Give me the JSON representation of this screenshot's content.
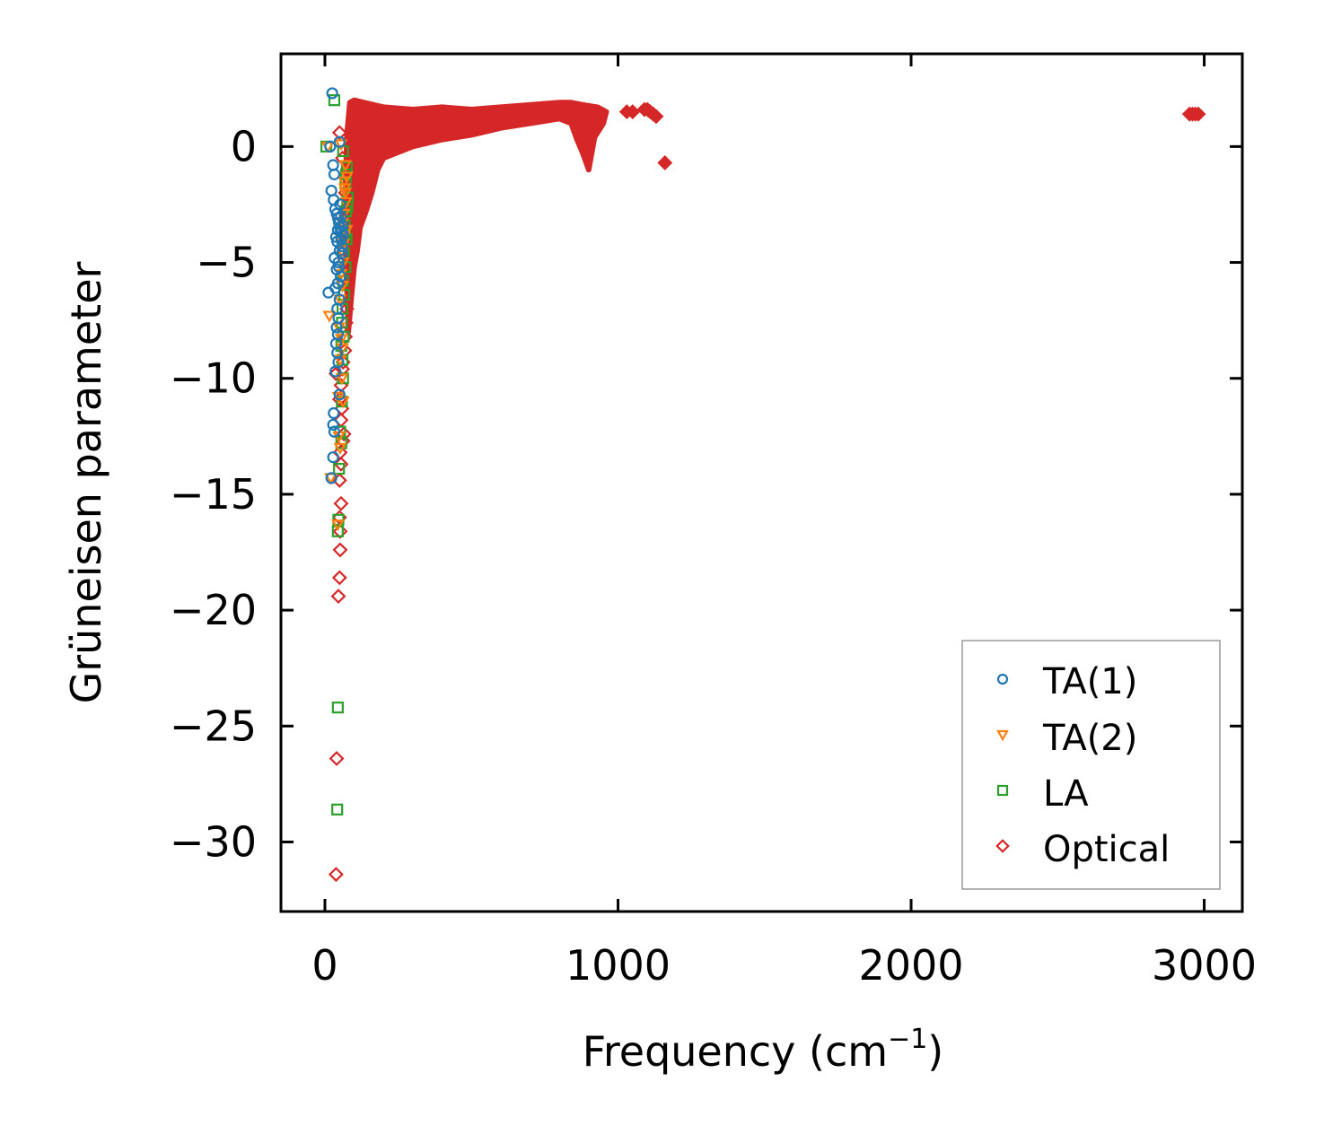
{
  "chart_data": {
    "type": "scatter",
    "title": "",
    "xlabel": "Frequency (cm",
    "xlabel_sup": "−1",
    "xlabel_end": ")",
    "ylabel": "Grüneisen parameter",
    "xlim": [
      -150,
      3130
    ],
    "ylim": [
      -33,
      4
    ],
    "xticks": [
      0,
      1000,
      2000,
      3000
    ],
    "xtick_labels": [
      "0",
      "1000",
      "2000",
      "3000"
    ],
    "yticks": [
      0,
      -5,
      -10,
      -15,
      -20,
      -25,
      -30
    ],
    "ytick_labels": [
      "0",
      "−5",
      "−10",
      "−15",
      "−20",
      "−25",
      "−30"
    ],
    "grid": false,
    "legend_position": "lower-right",
    "series": [
      {
        "name": "TA(1)",
        "label": "TA(1)",
        "marker": "circle",
        "color": "#1f77b4",
        "points": [
          [
            25,
            2.3
          ],
          [
            18,
            0
          ],
          [
            50,
            0.2
          ],
          [
            28,
            -0.8
          ],
          [
            32,
            -1.2
          ],
          [
            22,
            -1.9
          ],
          [
            30,
            -2.3
          ],
          [
            35,
            -2.7
          ],
          [
            40,
            -2.9
          ],
          [
            45,
            -3.1
          ],
          [
            48,
            -3.3
          ],
          [
            52,
            -3.5
          ],
          [
            55,
            -3.7
          ],
          [
            38,
            -3.9
          ],
          [
            42,
            -4.1
          ],
          [
            58,
            -4.3
          ],
          [
            50,
            -4.5
          ],
          [
            33,
            -4.8
          ],
          [
            46,
            -5.0
          ],
          [
            40,
            -5.3
          ],
          [
            54,
            -5.6
          ],
          [
            44,
            -5.9
          ],
          [
            36,
            -6.1
          ],
          [
            12,
            -6.3
          ],
          [
            50,
            -6.6
          ],
          [
            42,
            -7.0
          ],
          [
            46,
            -7.4
          ],
          [
            40,
            -7.8
          ],
          [
            44,
            -8.1
          ],
          [
            38,
            -8.5
          ],
          [
            42,
            -8.9
          ],
          [
            46,
            -9.3
          ],
          [
            36,
            -9.7
          ],
          [
            50,
            -10.7
          ],
          [
            30,
            -11.5
          ],
          [
            28,
            -12.0
          ],
          [
            32,
            -12.3
          ],
          [
            28,
            -13.4
          ],
          [
            22,
            -14.3
          ],
          [
            55,
            -3.0
          ],
          [
            60,
            -3.4
          ],
          [
            62,
            -3.8
          ],
          [
            58,
            -4.6
          ],
          [
            48,
            -5.2
          ],
          [
            52,
            -2.5
          ],
          [
            44,
            -3.6
          ],
          [
            56,
            -4.0
          ]
        ]
      },
      {
        "name": "TA(2)",
        "label": "TA(2)",
        "marker": "triangle-down",
        "color": "#ff7f0e",
        "points": [
          [
            10,
            0
          ],
          [
            55,
            0.1
          ],
          [
            70,
            -0.8
          ],
          [
            75,
            -1.3
          ],
          [
            68,
            -1.8
          ],
          [
            72,
            -2.4
          ],
          [
            65,
            -2.9
          ],
          [
            60,
            -3.3
          ],
          [
            66,
            -3.9
          ],
          [
            58,
            -4.5
          ],
          [
            62,
            -5.0
          ],
          [
            55,
            -5.5
          ],
          [
            60,
            -6.0
          ],
          [
            52,
            -6.6
          ],
          [
            15,
            -7.3
          ],
          [
            48,
            -7.8
          ],
          [
            56,
            -8.3
          ],
          [
            60,
            -8.7
          ],
          [
            52,
            -9.2
          ],
          [
            58,
            -10.0
          ],
          [
            46,
            -10.8
          ],
          [
            62,
            -11.0
          ],
          [
            48,
            -12.5
          ],
          [
            52,
            -13.0
          ],
          [
            20,
            -14.3
          ],
          [
            44,
            -16.3
          ],
          [
            70,
            -2.0
          ],
          [
            66,
            -1.5
          ],
          [
            74,
            -3.6
          ],
          [
            64,
            -4.2
          ]
        ]
      },
      {
        "name": "LA",
        "label": "LA",
        "marker": "square",
        "color": "#2ca02c",
        "points": [
          [
            5,
            0
          ],
          [
            32,
            2.0
          ],
          [
            62,
            -0.2
          ],
          [
            75,
            -0.9
          ],
          [
            70,
            -1.6
          ],
          [
            78,
            -2.2
          ],
          [
            72,
            -2.8
          ],
          [
            68,
            -3.4
          ],
          [
            74,
            -4.0
          ],
          [
            65,
            -4.6
          ],
          [
            70,
            -5.2
          ],
          [
            62,
            -5.8
          ],
          [
            66,
            -6.4
          ],
          [
            60,
            -7.0
          ],
          [
            58,
            -7.6
          ],
          [
            64,
            -8.2
          ],
          [
            56,
            -8.6
          ],
          [
            60,
            -9.2
          ],
          [
            62,
            -10.0
          ],
          [
            58,
            -11.0
          ],
          [
            52,
            -12.3
          ],
          [
            56,
            -12.8
          ],
          [
            48,
            -13.9
          ],
          [
            46,
            -16.1
          ],
          [
            44,
            -16.6
          ],
          [
            44,
            -24.2
          ],
          [
            42,
            -28.6
          ],
          [
            72,
            -1.2
          ],
          [
            76,
            -2.6
          ],
          [
            68,
            -3.8
          ]
        ]
      },
      {
        "name": "Optical",
        "label": "Optical",
        "marker": "diamond",
        "color": "#d62728",
        "dense_band": [
          [
            85,
            1.9
          ],
          [
            100,
            2.0
          ],
          [
            200,
            1.7
          ],
          [
            300,
            1.6
          ],
          [
            400,
            1.7
          ],
          [
            500,
            1.6
          ],
          [
            600,
            1.7
          ],
          [
            700,
            1.8
          ],
          [
            800,
            1.9
          ],
          [
            840,
            1.9
          ],
          [
            880,
            1.8
          ],
          [
            930,
            1.7
          ],
          [
            960,
            1.5
          ],
          [
            950,
            1.0
          ],
          [
            920,
            0.4
          ],
          [
            910,
            -0.3
          ],
          [
            900,
            -1.0
          ],
          [
            880,
            -0.3
          ],
          [
            860,
            0.3
          ],
          [
            840,
            1.0
          ],
          [
            800,
            1.2
          ],
          [
            700,
            1.0
          ],
          [
            600,
            0.8
          ],
          [
            500,
            0.5
          ],
          [
            400,
            0.3
          ],
          [
            300,
            0.0
          ],
          [
            200,
            -0.5
          ],
          [
            180,
            -1.0
          ],
          [
            160,
            -2.0
          ],
          [
            140,
            -2.8
          ],
          [
            120,
            -3.5
          ],
          [
            110,
            -4.5
          ],
          [
            100,
            -5.2
          ],
          [
            90,
            -6.5
          ],
          [
            80,
            -8.0
          ],
          [
            72,
            -5.0
          ],
          [
            70,
            -2.0
          ],
          [
            75,
            0.5
          ]
        ],
        "points": [
          [
            50,
            0.6
          ],
          [
            60,
            -0.5
          ],
          [
            70,
            -2.0
          ],
          [
            72,
            -3.0
          ],
          [
            68,
            -4.0
          ],
          [
            80,
            -5.0
          ],
          [
            78,
            -6.0
          ],
          [
            75,
            -7.0
          ],
          [
            72,
            -7.6
          ],
          [
            70,
            -8.2
          ],
          [
            68,
            -8.8
          ],
          [
            62,
            -9.3
          ],
          [
            60,
            -9.6
          ],
          [
            38,
            -9.8
          ],
          [
            55,
            -10.3
          ],
          [
            50,
            -10.9
          ],
          [
            58,
            -11.3
          ],
          [
            55,
            -11.8
          ],
          [
            65,
            -12.4
          ],
          [
            62,
            -12.7
          ],
          [
            52,
            -13.2
          ],
          [
            55,
            -13.7
          ],
          [
            50,
            -14.4
          ],
          [
            55,
            -15.4
          ],
          [
            50,
            -16.0
          ],
          [
            52,
            -16.6
          ],
          [
            52,
            -17.4
          ],
          [
            50,
            -18.6
          ],
          [
            46,
            -19.4
          ],
          [
            40,
            -26.4
          ],
          [
            38,
            -31.4
          ],
          [
            1030,
            1.5
          ],
          [
            1050,
            1.5
          ],
          [
            1090,
            1.6
          ],
          [
            1100,
            1.6
          ],
          [
            1110,
            1.5
          ],
          [
            1120,
            1.4
          ],
          [
            1130,
            1.3
          ],
          [
            1160,
            -0.7
          ],
          [
            2950,
            1.4
          ],
          [
            2960,
            1.4
          ],
          [
            2970,
            1.4
          ],
          [
            2980,
            1.4
          ]
        ]
      }
    ]
  }
}
